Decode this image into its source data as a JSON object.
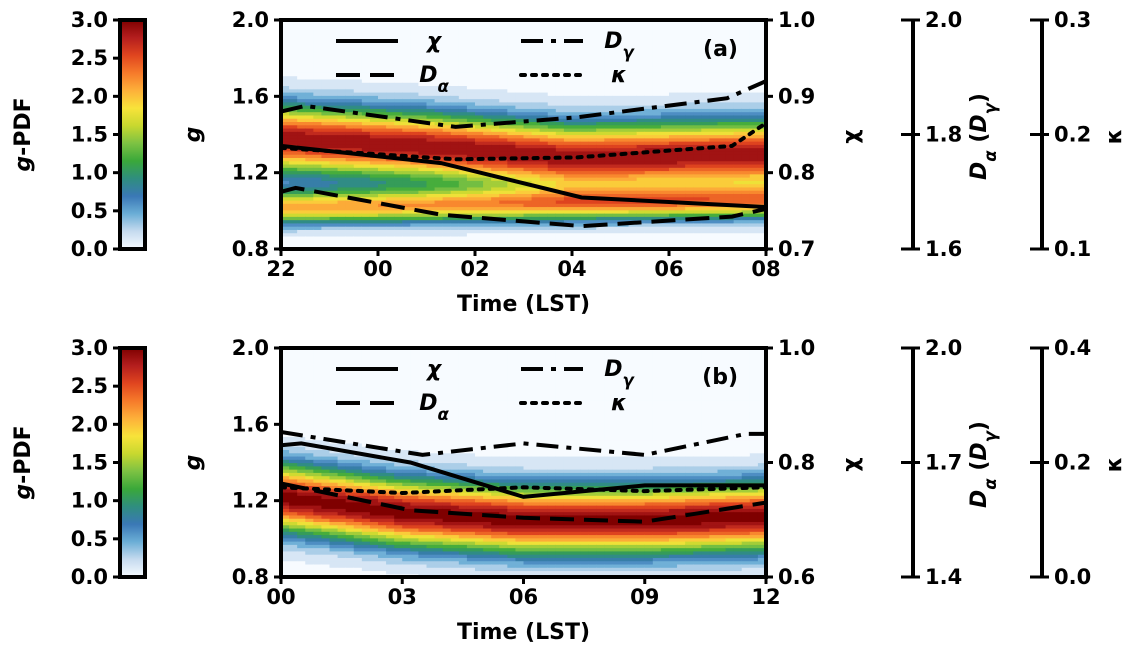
{
  "colorbar": {
    "label": "g-PDF",
    "range": [
      0,
      3
    ],
    "ticks": [
      "0.0",
      "0.5",
      "1.0",
      "1.5",
      "2.0",
      "2.5",
      "3.0"
    ],
    "colors": [
      "#f7fbff",
      "#c6dbef",
      "#6baed6",
      "#3a78b6",
      "#2f8e7f",
      "#3aa83a",
      "#7dc243",
      "#c8d82f",
      "#f8e33a",
      "#fdb03a",
      "#f67a2a",
      "#e0451f",
      "#b41e1e",
      "#7f0000"
    ]
  },
  "chart_data": [
    {
      "type": "line",
      "panel": "(a)",
      "xlabel": "Time (LST)",
      "x_ticks": [
        "22",
        "00",
        "02",
        "04",
        "06",
        "08"
      ],
      "x_hours": [
        22,
        24,
        26,
        28,
        30,
        32
      ],
      "left_axis": {
        "label": "g",
        "range": [
          0.8,
          2.0
        ],
        "ticks": [
          "0.8",
          "1.2",
          "1.6",
          "2.0"
        ]
      },
      "right_axes": [
        {
          "label": "χ",
          "range": [
            0.7,
            1.0
          ],
          "ticks": [
            "0.7",
            "0.8",
            "0.9",
            "1.0"
          ]
        },
        {
          "label": "Dα (Dγ)",
          "range": [
            1.6,
            2.0
          ],
          "ticks": [
            "1.6",
            "1.8",
            "2.0"
          ]
        },
        {
          "label": "κ",
          "range": [
            0.1,
            0.3
          ],
          "ticks": [
            "0.1",
            "0.2",
            "0.3"
          ]
        }
      ],
      "legend": [
        "χ",
        "Dγ",
        "Dα",
        "κ"
      ],
      "series": [
        {
          "name": "χ",
          "style": "solid",
          "x": [
            22,
            25.3,
            28.2,
            32
          ],
          "y": [
            1.34,
            1.25,
            1.07,
            1.02
          ]
        },
        {
          "name": "Dγ",
          "style": "dashdot",
          "x": [
            22,
            22.5,
            25.6,
            28.1,
            31.2,
            32
          ],
          "y": [
            1.52,
            1.55,
            1.44,
            1.49,
            1.59,
            1.68
          ]
        },
        {
          "name": "Dα",
          "style": "dashed",
          "x": [
            22,
            22.3,
            25.3,
            28.2,
            31.3,
            32
          ],
          "y": [
            1.1,
            1.12,
            0.98,
            0.92,
            0.97,
            1.01
          ]
        },
        {
          "name": "κ",
          "style": "dotted",
          "x": [
            22,
            25.6,
            28.1,
            31.3,
            32
          ],
          "y": [
            1.33,
            1.27,
            1.28,
            1.34,
            1.46
          ]
        }
      ],
      "pdf_ridges": [
        {
          "x": [
            22,
            25,
            28,
            32
          ],
          "g": [
            1.38,
            1.34,
            1.28,
            1.3
          ],
          "peak": 2.9
        },
        {
          "x": [
            22,
            25,
            28,
            32
          ],
          "g": [
            1.02,
            1.03,
            1.04,
            1.05
          ],
          "peak": 2.1
        }
      ]
    },
    {
      "type": "line",
      "panel": "(b)",
      "xlabel": "Time (LST)",
      "x_ticks": [
        "00",
        "03",
        "06",
        "09",
        "12"
      ],
      "x_hours": [
        0,
        3,
        6,
        9,
        12
      ],
      "left_axis": {
        "label": "g",
        "range": [
          0.8,
          2.0
        ],
        "ticks": [
          "0.8",
          "1.2",
          "1.6",
          "2.0"
        ]
      },
      "right_axes": [
        {
          "label": "χ",
          "range": [
            0.6,
            1.0
          ],
          "ticks": [
            "0.6",
            "0.8",
            "1.0"
          ]
        },
        {
          "label": "Dα (Dγ)",
          "range": [
            1.4,
            2.0
          ],
          "ticks": [
            "1.4",
            "1.7",
            "2.0"
          ]
        },
        {
          "label": "κ",
          "range": [
            0.0,
            0.4
          ],
          "ticks": [
            "0.0",
            "0.2",
            "0.4"
          ]
        }
      ],
      "legend": [
        "χ",
        "Dγ",
        "Dα",
        "κ"
      ],
      "series": [
        {
          "name": "χ",
          "style": "solid",
          "x": [
            0,
            0.5,
            3.2,
            6.0,
            9.0,
            12
          ],
          "y": [
            1.49,
            1.5,
            1.4,
            1.22,
            1.28,
            1.28
          ]
        },
        {
          "name": "Dγ",
          "style": "dashdot",
          "x": [
            0,
            3.5,
            6.0,
            9.0,
            11.5,
            12
          ],
          "y": [
            1.56,
            1.44,
            1.5,
            1.44,
            1.55,
            1.55
          ]
        },
        {
          "name": "Dα",
          "style": "dashed",
          "x": [
            0,
            3.2,
            6.0,
            9.0,
            12
          ],
          "y": [
            1.29,
            1.15,
            1.11,
            1.09,
            1.19
          ]
        },
        {
          "name": "κ",
          "style": "dotted",
          "x": [
            0,
            3.0,
            6.0,
            9.0,
            12
          ],
          "y": [
            1.27,
            1.24,
            1.27,
            1.25,
            1.27
          ]
        }
      ],
      "pdf_ridges": [
        {
          "x": [
            0,
            3,
            6,
            9,
            12
          ],
          "g": [
            1.22,
            1.14,
            1.1,
            1.1,
            1.12
          ],
          "peak": 3.0
        }
      ]
    }
  ]
}
